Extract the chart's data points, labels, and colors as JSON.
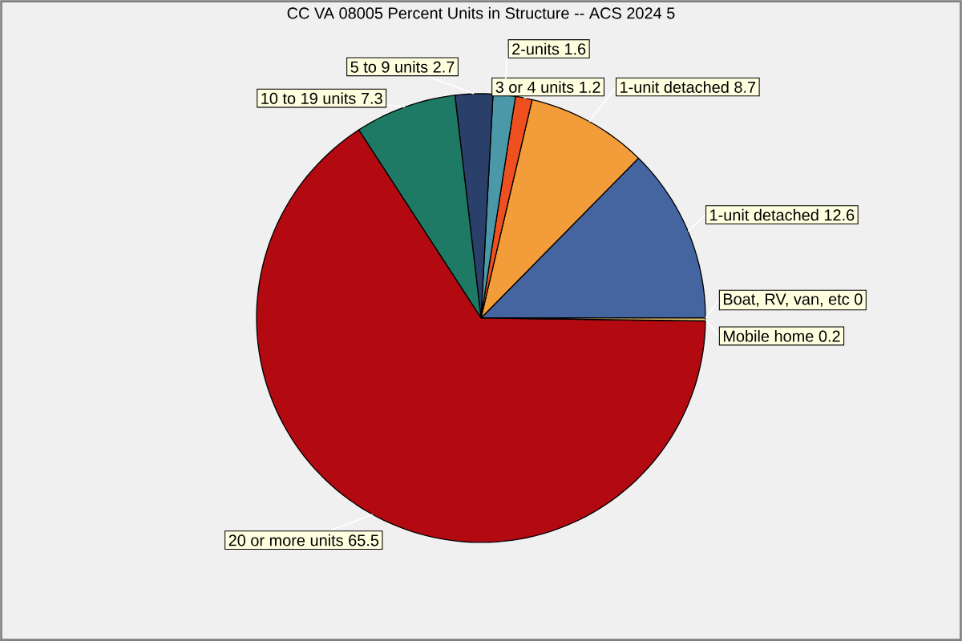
{
  "chart_data": {
    "type": "pie",
    "title": "CC VA 08005 Percent Units in Structure -- ACS 2024 5",
    "categories": [
      "1-unit detached",
      "1-unit detached",
      "3 or 4 units",
      "2-units",
      "5 to 9 units",
      "10 to 19 units",
      "20 or more units",
      "Mobile home",
      "Boat, RV, van, etc"
    ],
    "values": [
      12.6,
      8.7,
      1.2,
      1.6,
      2.7,
      7.3,
      65.5,
      0.2,
      0
    ],
    "colors": [
      "#4565a0",
      "#f29c3a",
      "#f05020",
      "#4a98a8",
      "#2b3f6b",
      "#1e7a64",
      "#b30a12",
      "#e8c870",
      "#c8c8c8"
    ],
    "value_labels": [
      "12.6",
      "8.7",
      "1.2",
      "1.6",
      "2.7",
      "7.3",
      "65.5",
      "0.2",
      "0"
    ]
  }
}
